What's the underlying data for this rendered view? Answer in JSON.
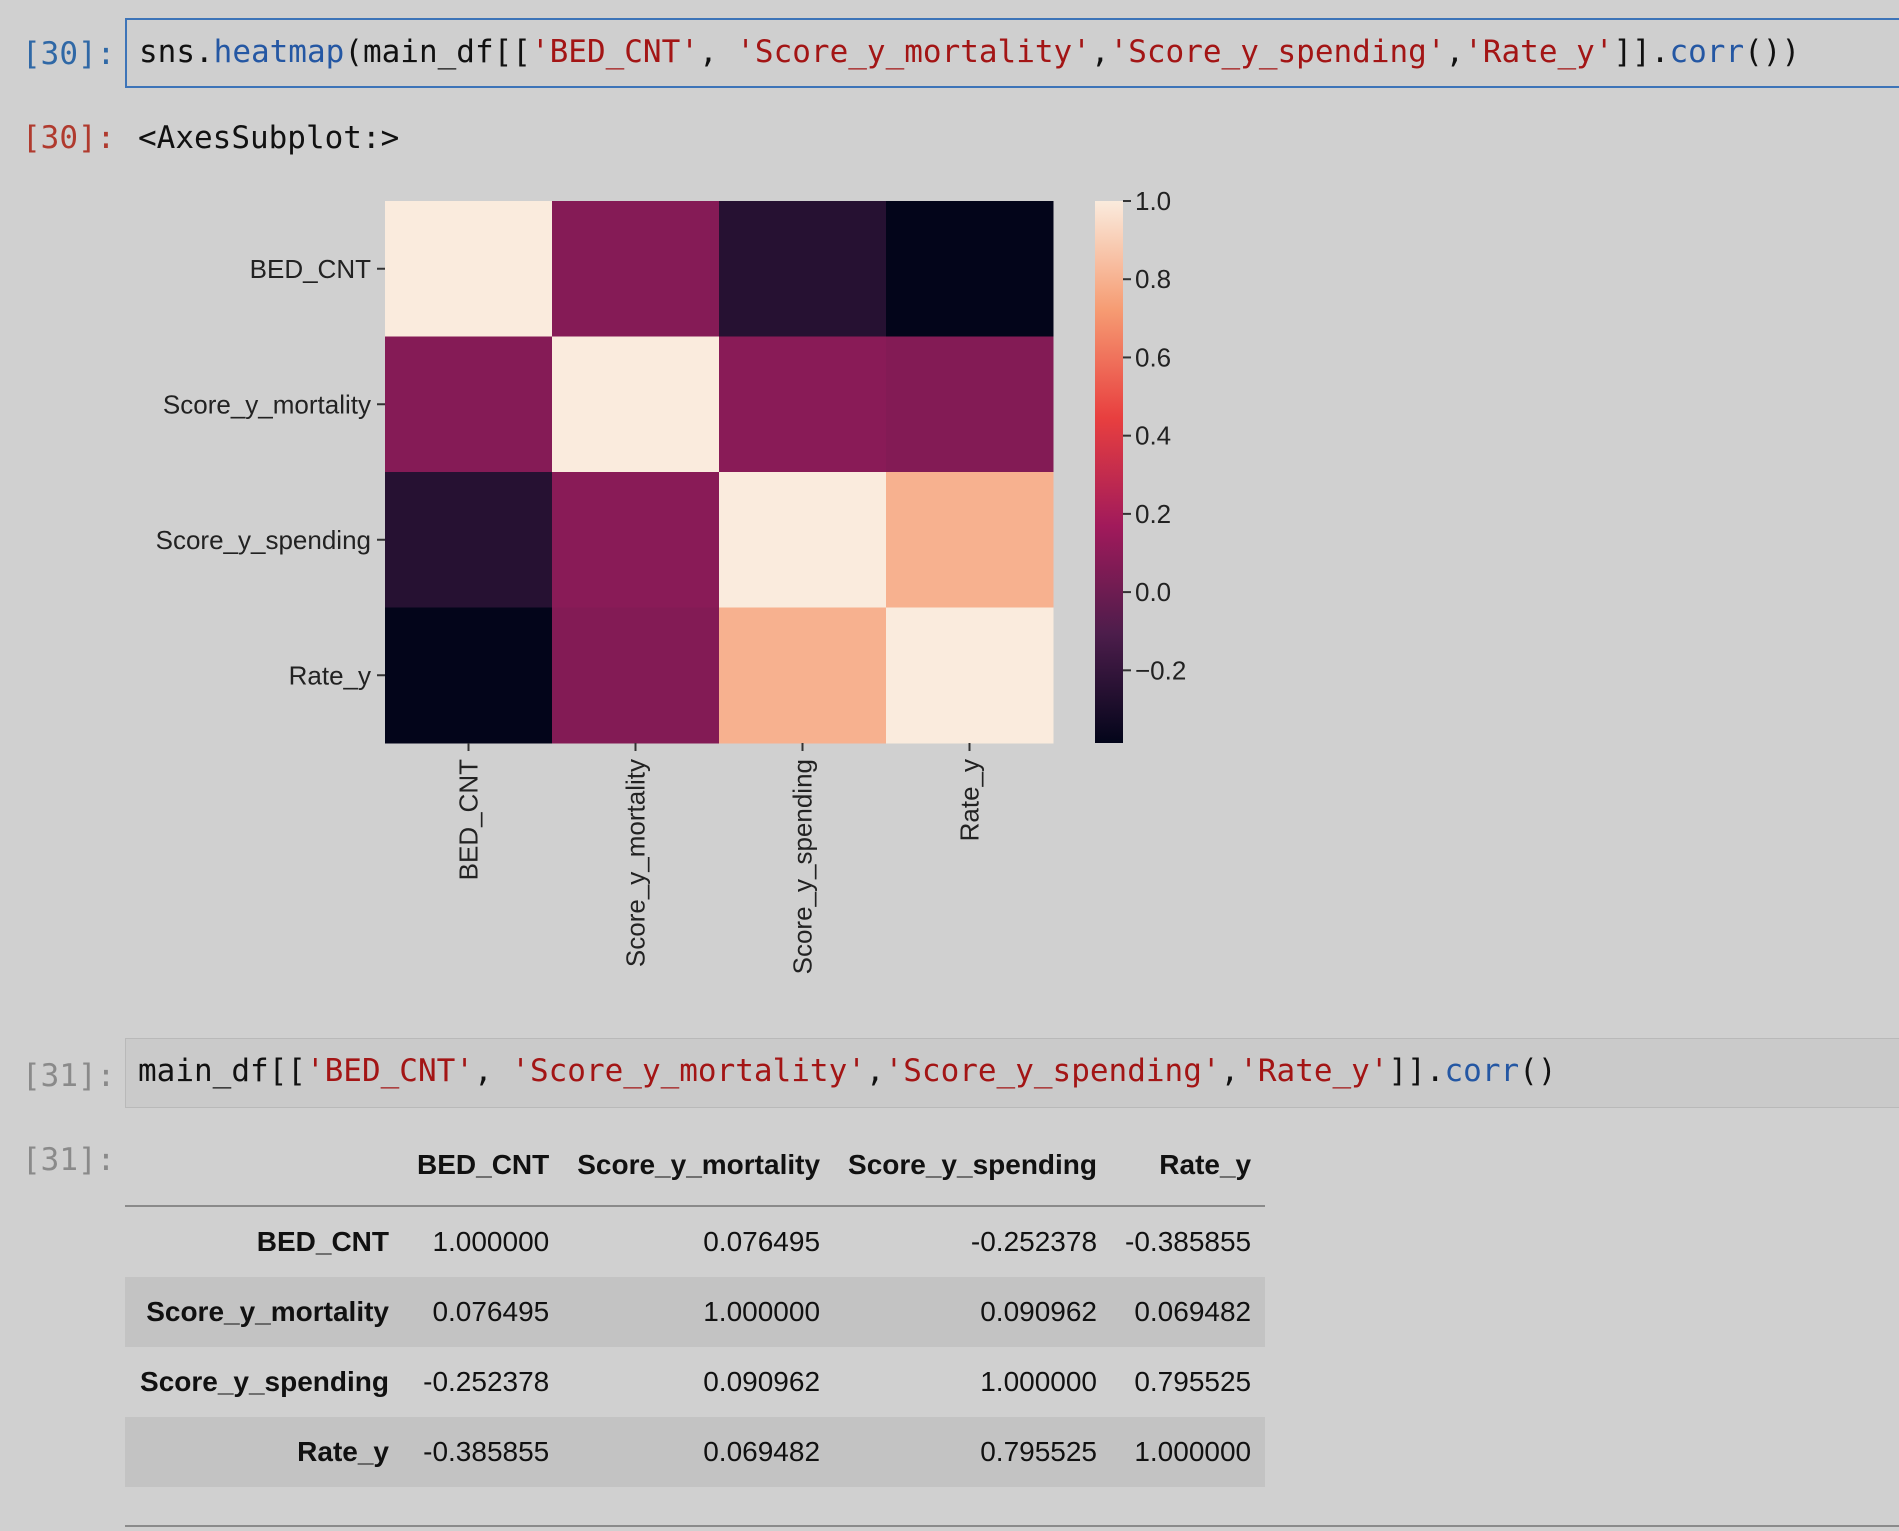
{
  "cells": {
    "c30": {
      "in_prompt": "[30]:",
      "out_prompt": "[30]:",
      "code": [
        {
          "t": "sns.",
          "k": "plain"
        },
        {
          "t": "heatmap",
          "k": "fn"
        },
        {
          "t": "(main_df[[",
          "k": "plain"
        },
        {
          "t": "'BED_CNT'",
          "k": "str"
        },
        {
          "t": ", ",
          "k": "plain"
        },
        {
          "t": "'Score_y_mortality'",
          "k": "str"
        },
        {
          "t": ",",
          "k": "plain"
        },
        {
          "t": "'Score_y_spending'",
          "k": "str"
        },
        {
          "t": ",",
          "k": "plain"
        },
        {
          "t": "'Rate_y'",
          "k": "str"
        },
        {
          "t": "]].",
          "k": "plain"
        },
        {
          "t": "corr",
          "k": "fn"
        },
        {
          "t": "())",
          "k": "plain"
        }
      ],
      "output_text": "<AxesSubplot:>"
    },
    "c31": {
      "in_prompt": "[31]:",
      "out_prompt": "[31]:",
      "code": [
        {
          "t": "main_df[[",
          "k": "plain"
        },
        {
          "t": "'BED_CNT'",
          "k": "str"
        },
        {
          "t": ", ",
          "k": "plain"
        },
        {
          "t": "'Score_y_mortality'",
          "k": "str"
        },
        {
          "t": ",",
          "k": "plain"
        },
        {
          "t": "'Score_y_spending'",
          "k": "str"
        },
        {
          "t": ",",
          "k": "plain"
        },
        {
          "t": "'Rate_y'",
          "k": "str"
        },
        {
          "t": "]].",
          "k": "plain"
        },
        {
          "t": "corr",
          "k": "fn"
        },
        {
          "t": "()",
          "k": "plain"
        }
      ]
    }
  },
  "chart_data": {
    "type": "heatmap",
    "title": "",
    "xlabel": "",
    "ylabel": "",
    "rows": [
      "BED_CNT",
      "Score_y_mortality",
      "Score_y_spending",
      "Rate_y"
    ],
    "cols": [
      "BED_CNT",
      "Score_y_mortality",
      "Score_y_spending",
      "Rate_y"
    ],
    "values": [
      [
        1.0,
        0.076495,
        -0.252378,
        -0.385855
      ],
      [
        0.076495,
        1.0,
        0.090962,
        0.069482
      ],
      [
        -0.252378,
        0.090962,
        1.0,
        0.795525
      ],
      [
        -0.385855,
        0.069482,
        0.795525,
        1.0
      ]
    ],
    "colorbar": {
      "range": [
        -0.385855,
        1.0
      ],
      "ticks": [
        1.0,
        0.8,
        0.6,
        0.4,
        0.2,
        0.0,
        -0.2
      ],
      "tick_labels": [
        "1.0",
        "0.8",
        "0.6",
        "0.4",
        "0.2",
        "0.0",
        "−0.2"
      ]
    },
    "colormap": "rocket",
    "colormap_stops": [
      "#03051a",
      "#4c1d4b",
      "#a11a5b",
      "#e83f3f",
      "#f69c73",
      "#faebdd"
    ]
  },
  "table": {
    "columns": [
      "BED_CNT",
      "Score_y_mortality",
      "Score_y_spending",
      "Rate_y"
    ],
    "rows": [
      {
        "label": "BED_CNT",
        "values": [
          "1.000000",
          "0.076495",
          "-0.252378",
          "-0.385855"
        ]
      },
      {
        "label": "Score_y_mortality",
        "values": [
          "0.076495",
          "1.000000",
          "0.090962",
          "0.069482"
        ]
      },
      {
        "label": "Score_y_spending",
        "values": [
          "-0.252378",
          "0.090962",
          "1.000000",
          "0.795525"
        ]
      },
      {
        "label": "Rate_y",
        "values": [
          "-0.385855",
          "0.069482",
          "0.795525",
          "1.000000"
        ]
      }
    ]
  }
}
